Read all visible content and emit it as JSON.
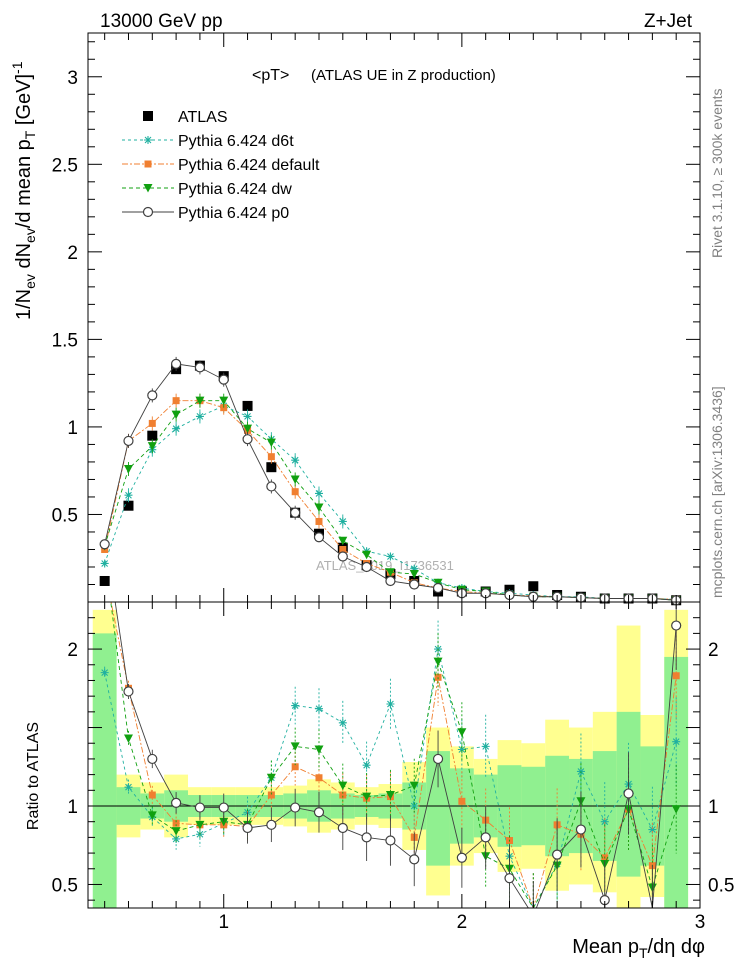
{
  "header": {
    "energy_label": "13000 GeV pp",
    "process_label": "Z+Jet",
    "plot_title": "<pT>",
    "plot_subtitle": "(ATLAS UE in Z production)",
    "watermark": "ATLAS_2019_I1736531",
    "side_label_top": "Rivet 3.1.10, ≥ 300k events",
    "side_label_bottom": "mcplots.cern.ch [arXiv:1306.3436]"
  },
  "colors": {
    "atlas": "#000000",
    "d6t": "#20b0a0",
    "default": "#f07f30",
    "dw": "#10a010",
    "p0": "#404040",
    "band_green": "#90f090",
    "band_yellow": "#ffff90"
  },
  "chart_data": [
    {
      "type": "scatter",
      "panel": "main",
      "title": "<pT>",
      "subtitle": "(ATLAS UE in Z production)",
      "ylabel": "1/N_ev dN_ev/d mean p_T [GeV]^-1",
      "xlim": [
        0.43,
        3.0
      ],
      "ylim": [
        0,
        3.25
      ],
      "yticks": [
        0.5,
        1,
        1.5,
        2,
        2.5,
        3
      ],
      "legend_position": "top-left",
      "x": [
        0.5,
        0.6,
        0.7,
        0.8,
        0.9,
        1.0,
        1.1,
        1.2,
        1.3,
        1.4,
        1.5,
        1.6,
        1.7,
        1.8,
        1.9,
        2.0,
        2.1,
        2.2,
        2.3,
        2.4,
        2.5,
        2.6,
        2.7,
        2.8,
        2.9
      ],
      "series": [
        {
          "name": "ATLAS",
          "key": "atlas",
          "marker": "square",
          "values": [
            0.12,
            0.55,
            0.95,
            1.33,
            1.35,
            1.29,
            1.12,
            0.77,
            0.51,
            0.39,
            0.31,
            0.21,
            0.16,
            0.12,
            0.06,
            0.06,
            0.06,
            0.07,
            0.09,
            0.04,
            0.03,
            0.02,
            0.02,
            0.02,
            0.01
          ]
        },
        {
          "name": "Pythia 6.424 d6t",
          "key": "d6t",
          "marker": "star",
          "values": [
            0.22,
            0.61,
            0.87,
            0.99,
            1.06,
            1.12,
            1.06,
            0.93,
            0.81,
            0.62,
            0.46,
            0.29,
            0.26,
            0.19,
            0.11,
            0.08,
            0.06,
            0.05,
            0.04,
            0.03,
            0.03,
            0.02,
            0.02,
            0.02,
            0.015
          ]
        },
        {
          "name": "Pythia 6.424 default",
          "key": "default",
          "marker": "small-square",
          "values": [
            0.3,
            0.92,
            1.02,
            1.15,
            1.15,
            1.11,
            0.98,
            0.83,
            0.63,
            0.46,
            0.3,
            0.22,
            0.17,
            0.11,
            0.08,
            0.06,
            0.05,
            0.04,
            0.035,
            0.03,
            0.025,
            0.02,
            0.02,
            0.02,
            0.015
          ]
        },
        {
          "name": "Pythia 6.424 dw",
          "key": "dw",
          "marker": "triangle-down",
          "values": [
            0.32,
            0.76,
            0.89,
            1.07,
            1.15,
            1.15,
            0.99,
            0.91,
            0.7,
            0.54,
            0.35,
            0.27,
            0.17,
            0.16,
            0.11,
            0.07,
            0.06,
            0.04,
            0.03,
            0.03,
            0.025,
            0.02,
            0.02,
            0.02,
            0.01
          ]
        },
        {
          "name": "Pythia 6.424 p0",
          "key": "p0",
          "marker": "open-circle",
          "values": [
            0.33,
            0.92,
            1.18,
            1.36,
            1.34,
            1.27,
            0.93,
            0.66,
            0.51,
            0.37,
            0.26,
            0.2,
            0.12,
            0.1,
            0.08,
            0.05,
            0.05,
            0.04,
            0.03,
            0.03,
            0.025,
            0.02,
            0.02,
            0.02,
            0.01
          ]
        }
      ]
    },
    {
      "type": "line",
      "panel": "ratio",
      "ylabel": "Ratio to ATLAS",
      "xlabel": "Mean p_T/dη dφ",
      "xlim": [
        0.43,
        3.0
      ],
      "ylim": [
        0.35,
        2.3
      ],
      "xticks": [
        1,
        2,
        3
      ],
      "yticks": [
        0.5,
        1,
        2
      ],
      "reference_line": 1,
      "x": [
        0.5,
        0.6,
        0.7,
        0.8,
        0.9,
        1.0,
        1.1,
        1.2,
        1.3,
        1.4,
        1.5,
        1.6,
        1.7,
        1.8,
        1.9,
        2.0,
        2.1,
        2.2,
        2.3,
        2.4,
        2.5,
        2.6,
        2.7,
        2.8,
        2.9
      ],
      "bands": {
        "yellow": [
          [
            0.5,
            2.25
          ],
          [
            0.8,
            1.2
          ],
          [
            0.85,
            1.15
          ],
          [
            0.8,
            1.2
          ],
          [
            0.88,
            1.12
          ],
          [
            0.88,
            1.12
          ],
          [
            0.88,
            1.12
          ],
          [
            0.88,
            1.12
          ],
          [
            0.87,
            1.13
          ],
          [
            0.83,
            1.17
          ],
          [
            0.85,
            1.15
          ],
          [
            0.88,
            1.12
          ],
          [
            0.86,
            1.14
          ],
          [
            0.72,
            1.28
          ],
          [
            0.43,
            1.5
          ],
          [
            0.62,
            1.38
          ],
          [
            0.7,
            1.3
          ],
          [
            0.58,
            1.42
          ],
          [
            0.6,
            1.4
          ],
          [
            0.46,
            1.55
          ],
          [
            0.5,
            1.5
          ],
          [
            0.45,
            1.6
          ],
          [
            0.35,
            2.15
          ],
          [
            0.42,
            1.58
          ],
          [
            0.35,
            2.25
          ]
        ],
        "green": [
          [
            0.35,
            2.1
          ],
          [
            0.88,
            1.12
          ],
          [
            0.92,
            1.08
          ],
          [
            0.9,
            1.1
          ],
          [
            0.93,
            1.07
          ],
          [
            0.93,
            1.07
          ],
          [
            0.93,
            1.07
          ],
          [
            0.93,
            1.07
          ],
          [
            0.92,
            1.08
          ],
          [
            0.9,
            1.1
          ],
          [
            0.92,
            1.08
          ],
          [
            0.93,
            1.07
          ],
          [
            0.92,
            1.08
          ],
          [
            0.85,
            1.15
          ],
          [
            0.62,
            1.35
          ],
          [
            0.76,
            1.24
          ],
          [
            0.8,
            1.2
          ],
          [
            0.74,
            1.26
          ],
          [
            0.75,
            1.25
          ],
          [
            0.68,
            1.32
          ],
          [
            0.7,
            1.3
          ],
          [
            0.65,
            1.35
          ],
          [
            0.55,
            1.6
          ],
          [
            0.62,
            1.38
          ],
          [
            0.35,
            1.95
          ]
        ]
      },
      "series": [
        {
          "name": "Pythia 6.424 d6t",
          "key": "d6t",
          "marker": "star",
          "values": [
            1.85,
            1.12,
            0.93,
            0.79,
            0.82,
            0.89,
            0.96,
            1.18,
            1.64,
            1.62,
            1.53,
            1.26,
            1.65,
            1.0,
            2.0,
            1.36,
            1.38,
            0.68,
            0.35,
            0.63,
            1.22,
            0.9,
            1.14,
            0.85,
            1.41
          ]
        },
        {
          "name": "Pythia 6.424 default",
          "key": "default",
          "marker": "small-square",
          "values": [
            2.5,
            1.75,
            1.07,
            0.89,
            0.88,
            0.88,
            0.87,
            1.07,
            1.25,
            1.18,
            1.07,
            1.05,
            1.06,
            0.8,
            1.82,
            1.03,
            0.91,
            0.78,
            0.35,
            0.88,
            0.82,
            0.67,
            0.98,
            0.62,
            1.83
          ]
        },
        {
          "name": "Pythia 6.424 dw",
          "key": "dw",
          "marker": "triangle-down",
          "values": [
            2.6,
            1.43,
            0.94,
            0.84,
            0.88,
            0.9,
            0.88,
            1.18,
            1.38,
            1.36,
            1.13,
            1.06,
            1.07,
            1.13,
            1.92,
            1.47,
            0.68,
            0.6,
            0.35,
            0.62,
            1.03,
            0.63,
            0.98,
            0.48,
            0.98
          ]
        },
        {
          "name": "Pythia 6.424 p0",
          "key": "p0",
          "marker": "open-circle",
          "values": [
            2.75,
            1.73,
            1.3,
            1.02,
            0.99,
            0.99,
            0.86,
            0.88,
            0.99,
            0.96,
            0.86,
            0.8,
            0.78,
            0.66,
            1.3,
            0.67,
            0.8,
            0.54,
            0.3,
            0.69,
            0.85,
            0.4,
            1.08,
            0.35,
            2.15
          ]
        }
      ]
    }
  ]
}
